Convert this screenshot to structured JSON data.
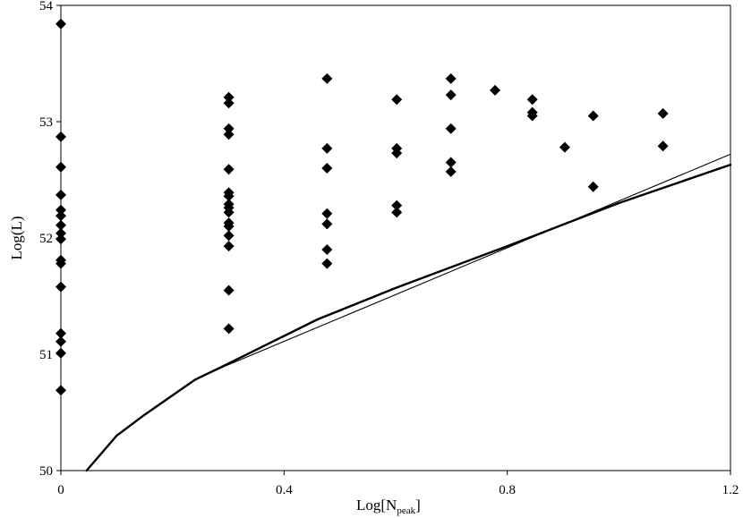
{
  "chart_data": {
    "type": "scatter",
    "xlabel": "Log[N",
    "xlabel_sub": "peak",
    "xlabel_close": "]",
    "ylabel": "Log(L)",
    "xlim": [
      0,
      1.2
    ],
    "ylim": [
      50,
      54
    ],
    "x_ticks": [
      {
        "value": 0,
        "label": "0"
      },
      {
        "value": 0.4,
        "label": "0.4"
      },
      {
        "value": 0.8,
        "label": "0.8"
      },
      {
        "value": 1.2,
        "label": "1.2"
      }
    ],
    "y_ticks": [
      {
        "value": 50,
        "label": "50"
      },
      {
        "value": 51,
        "label": "51"
      },
      {
        "value": 52,
        "label": "52"
      },
      {
        "value": 53,
        "label": "53"
      },
      {
        "value": 54,
        "label": "54"
      }
    ],
    "grid": false,
    "points": [
      [
        0,
        53.84
      ],
      [
        0,
        52.87
      ],
      [
        0,
        52.61
      ],
      [
        0,
        52.37
      ],
      [
        0,
        52.24
      ],
      [
        0,
        52.19
      ],
      [
        0,
        52.11
      ],
      [
        0,
        52.04
      ],
      [
        0,
        51.99
      ],
      [
        0,
        51.81
      ],
      [
        0,
        51.78
      ],
      [
        0,
        51.58
      ],
      [
        0,
        51.18
      ],
      [
        0,
        51.11
      ],
      [
        0,
        51.01
      ],
      [
        0,
        50.69
      ],
      [
        0.301,
        53.21
      ],
      [
        0.301,
        53.16
      ],
      [
        0.301,
        52.94
      ],
      [
        0.301,
        52.89
      ],
      [
        0.301,
        52.59
      ],
      [
        0.301,
        52.39
      ],
      [
        0.301,
        52.36
      ],
      [
        0.301,
        52.29
      ],
      [
        0.301,
        52.26
      ],
      [
        0.301,
        52.22
      ],
      [
        0.301,
        52.13
      ],
      [
        0.301,
        52.1
      ],
      [
        0.301,
        52.02
      ],
      [
        0.301,
        51.93
      ],
      [
        0.301,
        51.55
      ],
      [
        0.301,
        51.22
      ],
      [
        0.477,
        53.37
      ],
      [
        0.477,
        52.77
      ],
      [
        0.477,
        52.6
      ],
      [
        0.477,
        52.21
      ],
      [
        0.477,
        52.12
      ],
      [
        0.477,
        51.9
      ],
      [
        0.477,
        51.78
      ],
      [
        0.602,
        53.19
      ],
      [
        0.602,
        52.77
      ],
      [
        0.602,
        52.73
      ],
      [
        0.602,
        52.28
      ],
      [
        0.602,
        52.22
      ],
      [
        0.699,
        53.37
      ],
      [
        0.699,
        53.23
      ],
      [
        0.699,
        52.94
      ],
      [
        0.699,
        52.65
      ],
      [
        0.699,
        52.57
      ],
      [
        0.778,
        53.27
      ],
      [
        0.845,
        53.19
      ],
      [
        0.845,
        53.08
      ],
      [
        0.845,
        53.05
      ],
      [
        0.903,
        52.78
      ],
      [
        0.954,
        53.05
      ],
      [
        0.954,
        52.44
      ],
      [
        1.079,
        53.07
      ],
      [
        1.079,
        52.79
      ]
    ],
    "curves": [
      {
        "style": "thick",
        "points": [
          [
            0.046,
            50.0
          ],
          [
            0.1,
            50.3
          ],
          [
            0.15,
            50.48
          ],
          [
            0.24,
            50.78
          ],
          [
            0.3,
            50.92
          ],
          [
            0.46,
            51.3
          ],
          [
            0.6,
            51.57
          ],
          [
            0.8,
            51.93
          ],
          [
            1.0,
            52.3
          ],
          [
            1.2,
            52.63
          ]
        ]
      },
      {
        "style": "thin",
        "points": [
          [
            0.24,
            50.78
          ],
          [
            0.3,
            50.91
          ],
          [
            1.2,
            52.72
          ]
        ]
      }
    ]
  }
}
